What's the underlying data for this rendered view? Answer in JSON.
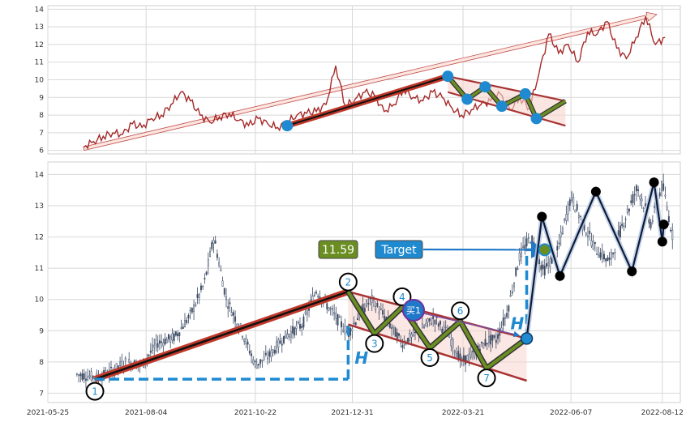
{
  "chart_data": [
    {
      "type": "line",
      "panel": "top",
      "ylim": [
        5.8,
        14.2
      ],
      "yticks": [
        "6",
        "7",
        "8",
        "9",
        "10",
        "11",
        "12",
        "13",
        "14"
      ],
      "series": [
        {
          "color": "#a52a2a",
          "x": [
            "2021-06-20",
            "2021-06-27",
            "2021-07-04",
            "2021-07-11",
            "2021-07-18",
            "2021-07-25",
            "2021-08-01",
            "2021-08-08",
            "2021-08-15",
            "2021-08-22",
            "2021-08-29",
            "2021-09-05",
            "2021-09-12",
            "2021-09-19",
            "2021-09-26",
            "2021-10-03",
            "2021-10-10",
            "2021-10-17",
            "2021-10-24",
            "2021-10-31",
            "2021-11-07",
            "2021-11-14",
            "2021-11-21",
            "2021-11-28",
            "2021-12-05",
            "2021-12-12",
            "2021-12-19",
            "2021-12-26",
            "2022-01-02",
            "2022-01-09",
            "2022-01-16",
            "2022-01-23",
            "2022-01-30",
            "2022-02-06",
            "2022-02-13",
            "2022-02-20",
            "2022-02-27",
            "2022-03-06",
            "2022-03-13",
            "2022-03-20",
            "2022-03-27",
            "2022-04-03",
            "2022-04-10",
            "2022-04-17",
            "2022-04-24",
            "2022-05-01",
            "2022-05-08",
            "2022-05-15",
            "2022-05-22",
            "2022-05-29",
            "2022-06-05",
            "2022-06-12",
            "2022-06-19",
            "2022-06-26",
            "2022-07-03",
            "2022-07-10",
            "2022-07-17",
            "2022-07-24",
            "2022-07-31",
            "2022-08-07",
            "2022-08-14"
          ],
          "y": [
            6.2,
            6.5,
            6.8,
            7.0,
            6.9,
            7.5,
            7.3,
            7.8,
            8.0,
            8.6,
            9.3,
            8.8,
            8.0,
            7.6,
            7.9,
            8.1,
            7.7,
            7.4,
            7.8,
            7.5,
            7.3,
            7.6,
            8.0,
            8.1,
            8.2,
            8.6,
            10.8,
            8.5,
            8.9,
            9.3,
            9.1,
            8.2,
            8.6,
            9.5,
            9.0,
            8.8,
            9.3,
            9.0,
            8.4,
            8.0,
            8.3,
            8.6,
            8.8,
            9.2,
            8.3,
            9.0,
            8.4,
            10.4,
            12.6,
            11.5,
            12.0,
            11.0,
            12.7,
            12.6,
            13.3,
            11.8,
            11.2,
            12.4,
            13.6,
            12.0,
            12.4
          ]
        }
      ],
      "annotations": {
        "arrow": {
          "from": [
            "2021-06-20",
            6.1
          ],
          "to": [
            "2022-08-08",
            13.7
          ]
        },
        "channel_lines": [
          {
            "from": [
              "2021-11-14",
              7.4
            ],
            "to": [
              "2022-03-10",
              10.2
            ]
          },
          {
            "from": [
              "2022-03-10",
              10.2
            ],
            "to": [
              "2022-06-03",
              8.8
            ]
          },
          {
            "from": [
              "2022-03-10",
              9.3
            ],
            "to": [
              "2022-06-03",
              7.4
            ]
          }
        ],
        "pivots": [
          {
            "x": "2021-11-14",
            "y": 7.4
          },
          {
            "x": "2022-03-10",
            "y": 10.2
          },
          {
            "x": "2022-03-24",
            "y": 8.9
          },
          {
            "x": "2022-04-06",
            "y": 9.6
          },
          {
            "x": "2022-04-18",
            "y": 8.5
          },
          {
            "x": "2022-05-05",
            "y": 9.2
          },
          {
            "x": "2022-05-13",
            "y": 7.8
          }
        ]
      }
    },
    {
      "type": "candlestick",
      "panel": "bottom",
      "ylim": [
        6.7,
        14.4
      ],
      "yticks": [
        "7",
        "8",
        "9",
        "10",
        "11",
        "12",
        "13",
        "14"
      ],
      "xlim": [
        "2021-05-25",
        "2022-08-25"
      ],
      "xticks": [
        "2021-05-25",
        "2021-08-04",
        "2021-10-22",
        "2021-12-31",
        "2022-03-21",
        "2022-06-07",
        "2022-08-12"
      ],
      "price_path": {
        "x": [
          "2021-06-15",
          "2021-07-01",
          "2021-07-10",
          "2021-07-20",
          "2021-08-01",
          "2021-08-12",
          "2021-08-25",
          "2021-09-05",
          "2021-09-15",
          "2021-09-22",
          "2021-10-01",
          "2021-10-12",
          "2021-10-22",
          "2021-11-01",
          "2021-11-12",
          "2021-11-25",
          "2021-12-05",
          "2021-12-18",
          "2021-12-28",
          "2022-01-06",
          "2022-01-14",
          "2022-01-24",
          "2022-02-05",
          "2022-02-15",
          "2022-02-28",
          "2022-03-10",
          "2022-03-20",
          "2022-03-30",
          "2022-04-08",
          "2022-04-14",
          "2022-04-22",
          "2022-05-01",
          "2022-05-09",
          "2022-05-18",
          "2022-05-28",
          "2022-06-07",
          "2022-06-15",
          "2022-06-25",
          "2022-07-05",
          "2022-07-15",
          "2022-07-25",
          "2022-08-04",
          "2022-08-12",
          "2022-08-20"
        ],
        "y": [
          7.6,
          7.5,
          7.7,
          8.0,
          7.9,
          8.6,
          8.8,
          9.5,
          10.5,
          12.0,
          10.0,
          9.0,
          7.9,
          8.2,
          8.8,
          9.2,
          10.3,
          9.5,
          8.9,
          9.6,
          10.0,
          9.4,
          8.6,
          8.9,
          9.4,
          8.9,
          8.0,
          8.3,
          8.7,
          8.7,
          9.6,
          11.4,
          12.0,
          10.9,
          11.5,
          13.3,
          12.5,
          11.6,
          11.2,
          12.5,
          13.6,
          12.4,
          13.7,
          11.9
        ]
      },
      "annotations": {
        "legs": [
          {
            "from": [
              "2021-06-28",
              7.45
            ],
            "to": [
              "2021-12-28",
              10.25
            ]
          },
          {
            "from": [
              "2021-12-28",
              10.25
            ],
            "to": [
              "2022-01-16",
              8.9
            ]
          },
          {
            "from": [
              "2022-01-16",
              8.9
            ],
            "to": [
              "2022-02-05",
              9.75
            ]
          },
          {
            "from": [
              "2022-02-05",
              9.75
            ],
            "to": [
              "2022-02-25",
              8.45
            ]
          },
          {
            "from": [
              "2022-02-25",
              8.45
            ],
            "to": [
              "2022-03-19",
              9.3
            ]
          },
          {
            "from": [
              "2022-03-19",
              9.3
            ],
            "to": [
              "2022-04-07",
              7.8
            ]
          },
          {
            "from": [
              "2022-04-07",
              7.8
            ],
            "to": [
              "2022-05-06",
              8.75
            ]
          }
        ],
        "upper_line": {
          "from": [
            "2021-12-28",
            10.25
          ],
          "to": [
            "2022-05-06",
            8.75
          ]
        },
        "lower_line": {
          "from": [
            "2021-12-28",
            9.2
          ],
          "to": [
            "2022-05-06",
            7.4
          ]
        },
        "numbered_pivots": [
          {
            "label": "1",
            "x": "2021-06-28",
            "y": 7.45
          },
          {
            "label": "2",
            "x": "2021-12-28",
            "y": 10.25
          },
          {
            "label": "3",
            "x": "2022-01-16",
            "y": 8.9
          },
          {
            "label": "4",
            "x": "2022-02-05",
            "y": 9.75
          },
          {
            "label": "5",
            "x": "2022-02-25",
            "y": 8.45
          },
          {
            "label": "6",
            "x": "2022-03-19",
            "y": 9.3
          },
          {
            "label": "7",
            "x": "2022-04-07",
            "y": 7.8
          }
        ],
        "breakout_point": {
          "x": "2022-05-06",
          "y": 8.75
        },
        "swing_points": [
          {
            "x": "2022-05-06",
            "y": 8.75
          },
          {
            "x": "2022-05-17",
            "y": 12.65
          },
          {
            "x": "2022-05-30",
            "y": 10.75
          },
          {
            "x": "2022-06-25",
            "y": 13.45
          },
          {
            "x": "2022-07-21",
            "y": 10.9
          },
          {
            "x": "2022-08-06",
            "y": 13.75
          },
          {
            "x": "2022-08-12",
            "y": 11.85
          },
          {
            "x": "2022-08-13",
            "y": 12.4
          }
        ],
        "target_value": "11.59",
        "target_label": "Target",
        "buy_label": "买1",
        "h_label": "H",
        "h1_level": 7.45,
        "h1_start": "2021-06-28",
        "h1_end": "2021-12-28",
        "h2_level": 11.59,
        "h2_x": "2022-05-06",
        "target_arrow_end": "2022-05-19"
      }
    }
  ]
}
